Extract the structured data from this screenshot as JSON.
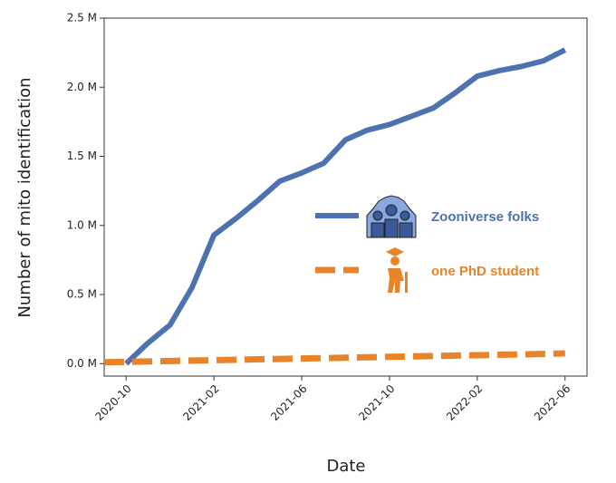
{
  "chart_data": {
    "type": "line",
    "x_label": "Date",
    "y_label": "Number of mito identification",
    "x": [
      "2020-09",
      "2020-10",
      "2020-11",
      "2020-12",
      "2021-01",
      "2021-02",
      "2021-03",
      "2021-04",
      "2021-05",
      "2021-06",
      "2021-07",
      "2021-08",
      "2021-09",
      "2021-10",
      "2021-11",
      "2021-12",
      "2022-01",
      "2022-02",
      "2022-03",
      "2022-04",
      "2022-05",
      "2022-06"
    ],
    "series": [
      {
        "name": "Zooniverse folks",
        "color": "#4c72b0",
        "dashed": false,
        "values": [
          null,
          0,
          150000,
          280000,
          550000,
          930000,
          1050000,
          1180000,
          1320000,
          1380000,
          1450000,
          1620000,
          1690000,
          1730000,
          1790000,
          1850000,
          1960000,
          2080000,
          2120000,
          2150000,
          2190000,
          2270000
        ]
      },
      {
        "name": "one PhD student",
        "color": "#e8832a",
        "dashed": true,
        "values": [
          10000,
          13000,
          16000,
          19000,
          22000,
          25000,
          28000,
          31000,
          34000,
          37000,
          40000,
          43000,
          46000,
          49000,
          52000,
          55000,
          58000,
          61000,
          64000,
          67000,
          70000,
          74000
        ]
      }
    ],
    "xlim": [
      "2020-09",
      "2022-07"
    ],
    "xticks": [
      "2020-10",
      "2021-02",
      "2021-06",
      "2021-10",
      "2022-02",
      "2022-06"
    ],
    "ylim": [
      -90000,
      2500000
    ],
    "yticks": [
      {
        "value": 0,
        "label": "0.0 M"
      },
      {
        "value": 500000,
        "label": "0.5 M"
      },
      {
        "value": 1000000,
        "label": "1.0 M"
      },
      {
        "value": 1500000,
        "label": "1.5 M"
      },
      {
        "value": 2000000,
        "label": "2.0 M"
      },
      {
        "value": 2500000,
        "label": "2.5 M"
      }
    ]
  }
}
